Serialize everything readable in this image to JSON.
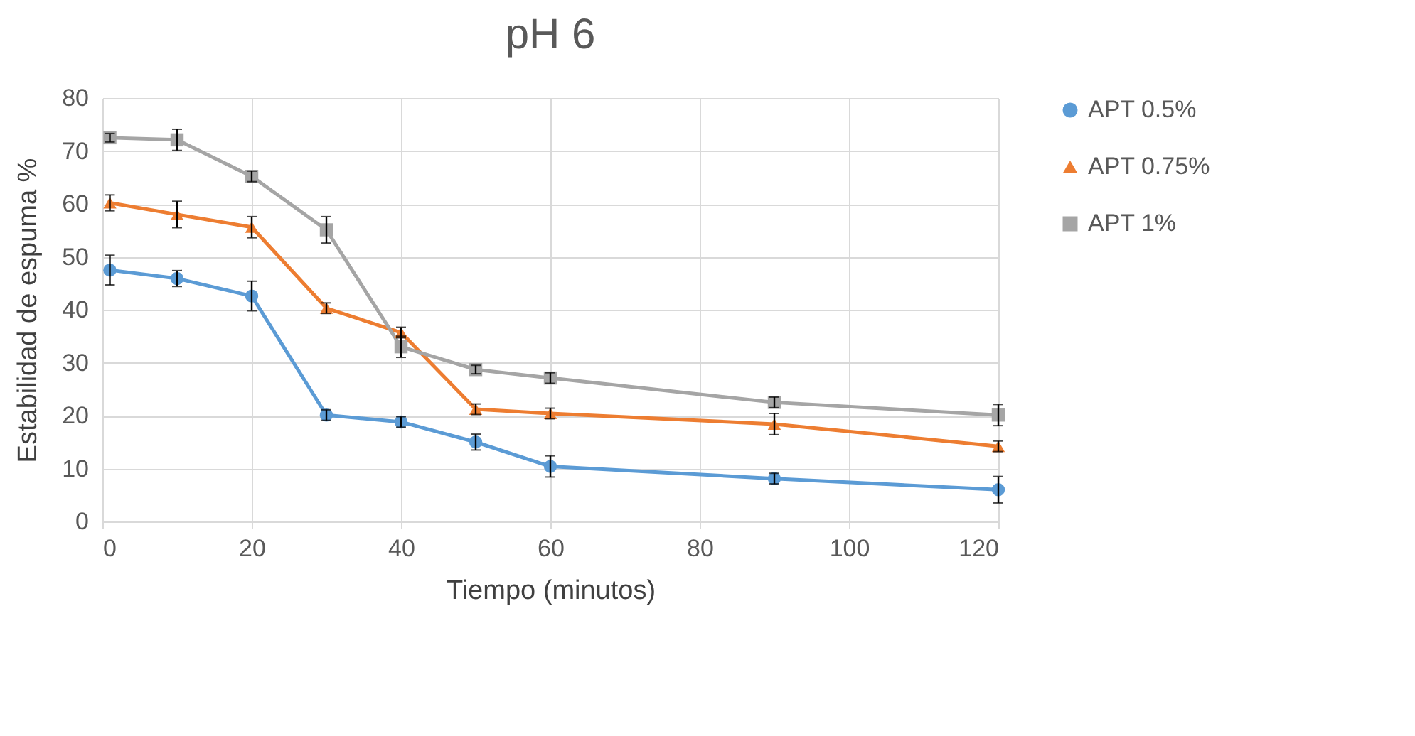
{
  "chart_data": {
    "type": "line",
    "title": "pH 6",
    "xlabel": "Tiempo (minutos)",
    "ylabel": "Estabilidad de espuma %",
    "x": [
      1,
      10,
      20,
      30,
      40,
      50,
      60,
      90,
      120
    ],
    "series": [
      {
        "name": "APT 0.5%",
        "color": "#5b9bd5",
        "marker": "circle",
        "values": [
          47.5,
          45.9,
          42.6,
          20.1,
          18.8,
          15.0,
          10.4,
          8.1,
          6.0
        ],
        "errors": [
          2.8,
          1.5,
          2.8,
          1.0,
          1.0,
          1.5,
          2.0,
          1.0,
          2.5
        ]
      },
      {
        "name": "APT 0.75%",
        "color": "#ed7d31",
        "marker": "triangle",
        "values": [
          60.2,
          58.0,
          55.6,
          40.3,
          35.7,
          21.2,
          20.4,
          18.4,
          14.2
        ],
        "errors": [
          1.5,
          2.5,
          2.0,
          1.0,
          1.0,
          1.0,
          1.0,
          2.0,
          1.0
        ]
      },
      {
        "name": "APT 1%",
        "color": "#a5a5a5",
        "marker": "square",
        "values": [
          72.5,
          72.1,
          65.2,
          55.1,
          33.0,
          28.7,
          27.1,
          22.5,
          20.1
        ],
        "errors": [
          0.8,
          2.0,
          1.0,
          2.5,
          2.0,
          0.8,
          1.0,
          1.0,
          2.0
        ]
      }
    ],
    "xlim": [
      0,
      120
    ],
    "xticks": [
      0,
      20,
      40,
      60,
      80,
      100,
      120
    ],
    "ylim": [
      0,
      80
    ],
    "yticks": [
      0,
      10,
      20,
      30,
      40,
      50,
      60,
      70,
      80
    ],
    "grid": true,
    "legend": "right",
    "line_style": "solid"
  }
}
